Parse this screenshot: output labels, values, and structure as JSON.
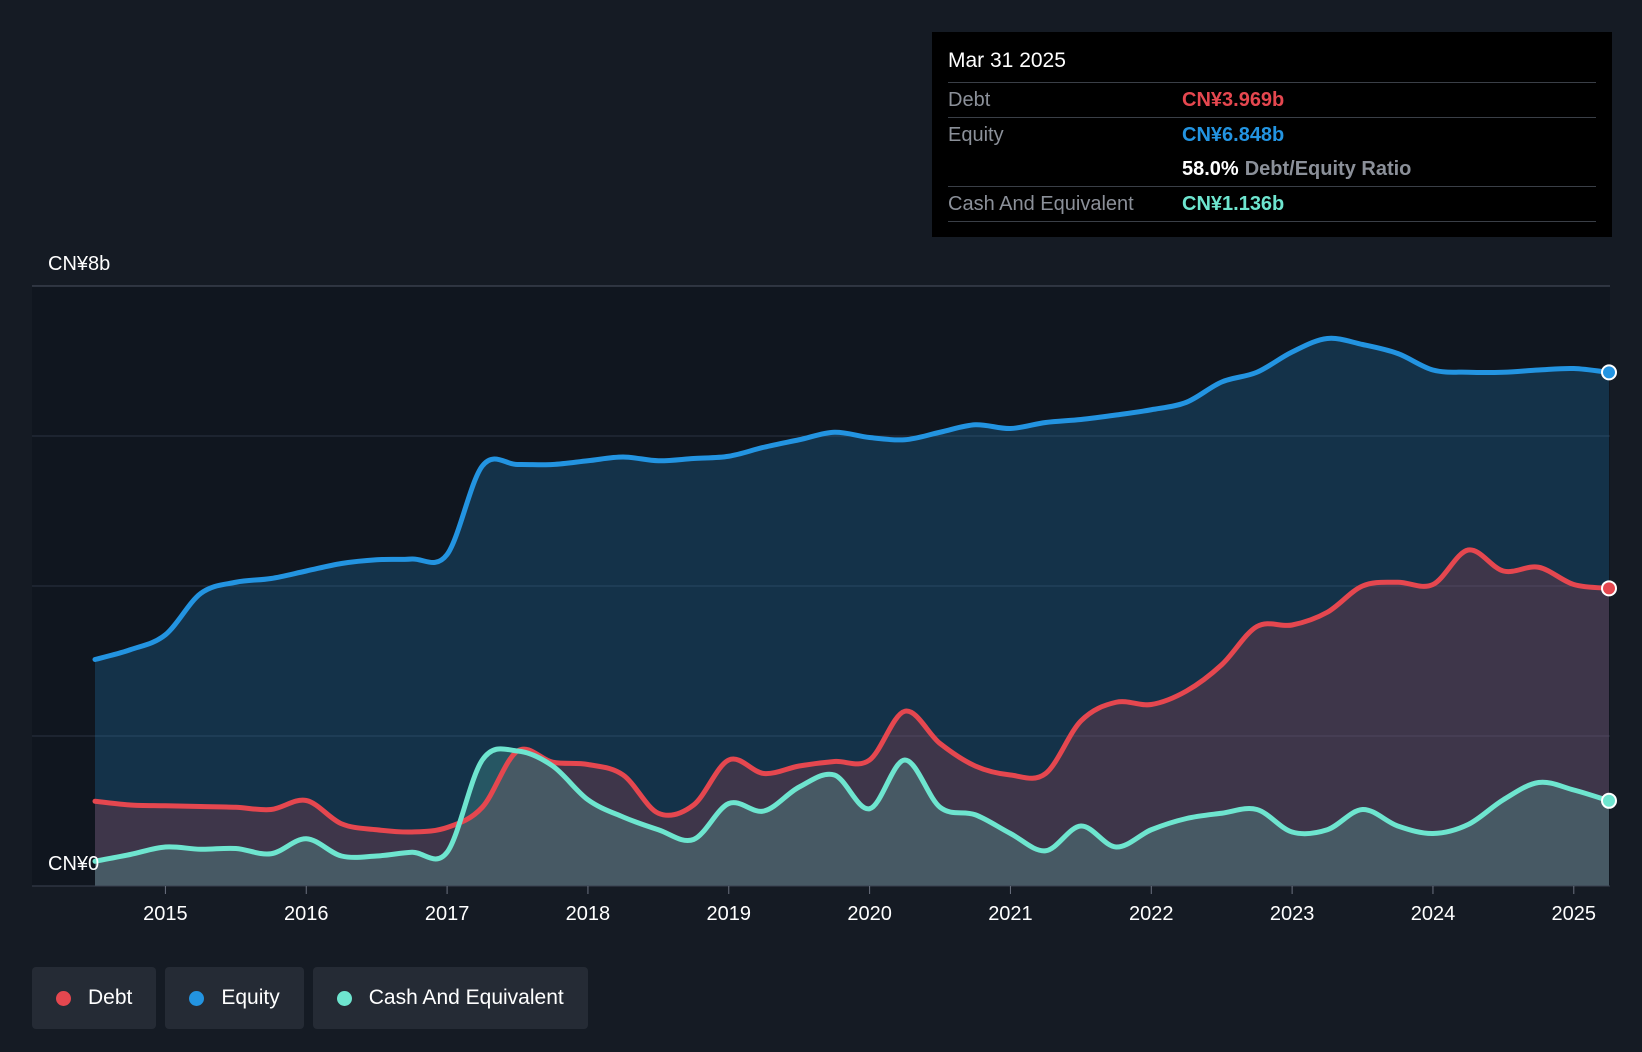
{
  "tooltip": {
    "date": "Mar 31 2025",
    "rows": [
      {
        "label": "Debt",
        "value": "CN¥3.969b"
      },
      {
        "label": "Equity",
        "value": "CN¥6.848b"
      },
      {
        "label": "",
        "value": "58.0%",
        "extra": "Debt/Equity Ratio"
      },
      {
        "label": "Cash And Equivalent",
        "value": "CN¥1.136b"
      }
    ]
  },
  "legend": [
    {
      "label": "Debt",
      "color": "#e5474f"
    },
    {
      "label": "Equity",
      "color": "#2394e1"
    },
    {
      "label": "Cash And Equivalent",
      "color": "#6ee5cf"
    }
  ],
  "colors": {
    "debt": "#e5474f",
    "equity": "#2394e1",
    "cash": "#6ee5cf",
    "background": "#151b24",
    "plot_background": "#10161f"
  },
  "chart_data": {
    "type": "area",
    "title": "",
    "xlabel": "",
    "ylabel": "",
    "y_axis_labels": {
      "top": "CN¥8b",
      "bottom": "CN¥0"
    },
    "ylim": [
      0,
      8
    ],
    "y_gridlines": [
      0,
      2,
      4,
      6,
      8
    ],
    "xlim": [
      2014.5,
      2025.25
    ],
    "x_ticks": [
      2015,
      2016,
      2017,
      2018,
      2019,
      2020,
      2021,
      2022,
      2023,
      2024,
      2025
    ],
    "x_tick_labels": [
      "2015",
      "2016",
      "2017",
      "2018",
      "2019",
      "2020",
      "2021",
      "2022",
      "2023",
      "2024",
      "2025"
    ],
    "series": [
      {
        "name": "Equity",
        "color": "#2394e1",
        "points": [
          [
            2014.5,
            3.02
          ],
          [
            2014.75,
            3.15
          ],
          [
            2015.0,
            3.35
          ],
          [
            2015.25,
            3.9
          ],
          [
            2015.5,
            4.05
          ],
          [
            2015.75,
            4.1
          ],
          [
            2016.0,
            4.2
          ],
          [
            2016.25,
            4.3
          ],
          [
            2016.5,
            4.35
          ],
          [
            2016.75,
            4.36
          ],
          [
            2017.0,
            4.42
          ],
          [
            2017.25,
            5.6
          ],
          [
            2017.5,
            5.62
          ],
          [
            2017.75,
            5.62
          ],
          [
            2018.0,
            5.67
          ],
          [
            2018.25,
            5.72
          ],
          [
            2018.5,
            5.67
          ],
          [
            2018.75,
            5.7
          ],
          [
            2019.0,
            5.73
          ],
          [
            2019.25,
            5.85
          ],
          [
            2019.5,
            5.95
          ],
          [
            2019.75,
            6.05
          ],
          [
            2020.0,
            5.98
          ],
          [
            2020.25,
            5.95
          ],
          [
            2020.5,
            6.05
          ],
          [
            2020.75,
            6.15
          ],
          [
            2021.0,
            6.1
          ],
          [
            2021.25,
            6.18
          ],
          [
            2021.5,
            6.22
          ],
          [
            2021.75,
            6.28
          ],
          [
            2022.0,
            6.35
          ],
          [
            2022.25,
            6.45
          ],
          [
            2022.5,
            6.72
          ],
          [
            2022.75,
            6.85
          ],
          [
            2023.0,
            7.12
          ],
          [
            2023.25,
            7.3
          ],
          [
            2023.5,
            7.22
          ],
          [
            2023.75,
            7.1
          ],
          [
            2024.0,
            6.88
          ],
          [
            2024.25,
            6.85
          ],
          [
            2024.5,
            6.85
          ],
          [
            2024.75,
            6.88
          ],
          [
            2025.0,
            6.9
          ],
          [
            2025.25,
            6.848
          ]
        ]
      },
      {
        "name": "Debt",
        "color": "#e5474f",
        "points": [
          [
            2014.5,
            1.13
          ],
          [
            2014.75,
            1.08
          ],
          [
            2015.0,
            1.07
          ],
          [
            2015.25,
            1.06
          ],
          [
            2015.5,
            1.05
          ],
          [
            2015.75,
            1.02
          ],
          [
            2016.0,
            1.14
          ],
          [
            2016.25,
            0.83
          ],
          [
            2016.5,
            0.75
          ],
          [
            2016.75,
            0.72
          ],
          [
            2017.0,
            0.78
          ],
          [
            2017.25,
            1.05
          ],
          [
            2017.5,
            1.8
          ],
          [
            2017.75,
            1.65
          ],
          [
            2018.0,
            1.62
          ],
          [
            2018.25,
            1.48
          ],
          [
            2018.5,
            0.97
          ],
          [
            2018.75,
            1.08
          ],
          [
            2019.0,
            1.68
          ],
          [
            2019.25,
            1.5
          ],
          [
            2019.5,
            1.6
          ],
          [
            2019.75,
            1.66
          ],
          [
            2020.0,
            1.68
          ],
          [
            2020.25,
            2.33
          ],
          [
            2020.5,
            1.9
          ],
          [
            2020.75,
            1.6
          ],
          [
            2021.0,
            1.48
          ],
          [
            2021.25,
            1.5
          ],
          [
            2021.5,
            2.2
          ],
          [
            2021.75,
            2.45
          ],
          [
            2022.0,
            2.42
          ],
          [
            2022.25,
            2.6
          ],
          [
            2022.5,
            2.95
          ],
          [
            2022.75,
            3.46
          ],
          [
            2023.0,
            3.48
          ],
          [
            2023.25,
            3.65
          ],
          [
            2023.5,
            4.0
          ],
          [
            2023.75,
            4.05
          ],
          [
            2024.0,
            4.02
          ],
          [
            2024.25,
            4.48
          ],
          [
            2024.5,
            4.2
          ],
          [
            2024.75,
            4.25
          ],
          [
            2025.0,
            4.02
          ],
          [
            2025.25,
            3.969
          ]
        ]
      },
      {
        "name": "Cash And Equivalent",
        "color": "#6ee5cf",
        "points": [
          [
            2014.5,
            0.33
          ],
          [
            2014.75,
            0.42
          ],
          [
            2015.0,
            0.52
          ],
          [
            2015.25,
            0.49
          ],
          [
            2015.5,
            0.5
          ],
          [
            2015.75,
            0.43
          ],
          [
            2016.0,
            0.63
          ],
          [
            2016.25,
            0.4
          ],
          [
            2016.5,
            0.4
          ],
          [
            2016.75,
            0.45
          ],
          [
            2017.0,
            0.45
          ],
          [
            2017.25,
            1.68
          ],
          [
            2017.5,
            1.8
          ],
          [
            2017.75,
            1.6
          ],
          [
            2018.0,
            1.15
          ],
          [
            2018.25,
            0.92
          ],
          [
            2018.5,
            0.75
          ],
          [
            2018.75,
            0.62
          ],
          [
            2019.0,
            1.1
          ],
          [
            2019.25,
            1.0
          ],
          [
            2019.5,
            1.32
          ],
          [
            2019.75,
            1.48
          ],
          [
            2020.0,
            1.03
          ],
          [
            2020.25,
            1.68
          ],
          [
            2020.5,
            1.05
          ],
          [
            2020.75,
            0.95
          ],
          [
            2021.0,
            0.7
          ],
          [
            2021.25,
            0.47
          ],
          [
            2021.5,
            0.8
          ],
          [
            2021.75,
            0.52
          ],
          [
            2022.0,
            0.75
          ],
          [
            2022.25,
            0.9
          ],
          [
            2022.5,
            0.97
          ],
          [
            2022.75,
            1.02
          ],
          [
            2023.0,
            0.72
          ],
          [
            2023.25,
            0.75
          ],
          [
            2023.5,
            1.02
          ],
          [
            2023.75,
            0.8
          ],
          [
            2024.0,
            0.7
          ],
          [
            2024.25,
            0.82
          ],
          [
            2024.5,
            1.15
          ],
          [
            2024.75,
            1.38
          ],
          [
            2025.0,
            1.28
          ],
          [
            2025.25,
            1.136
          ]
        ]
      }
    ]
  }
}
